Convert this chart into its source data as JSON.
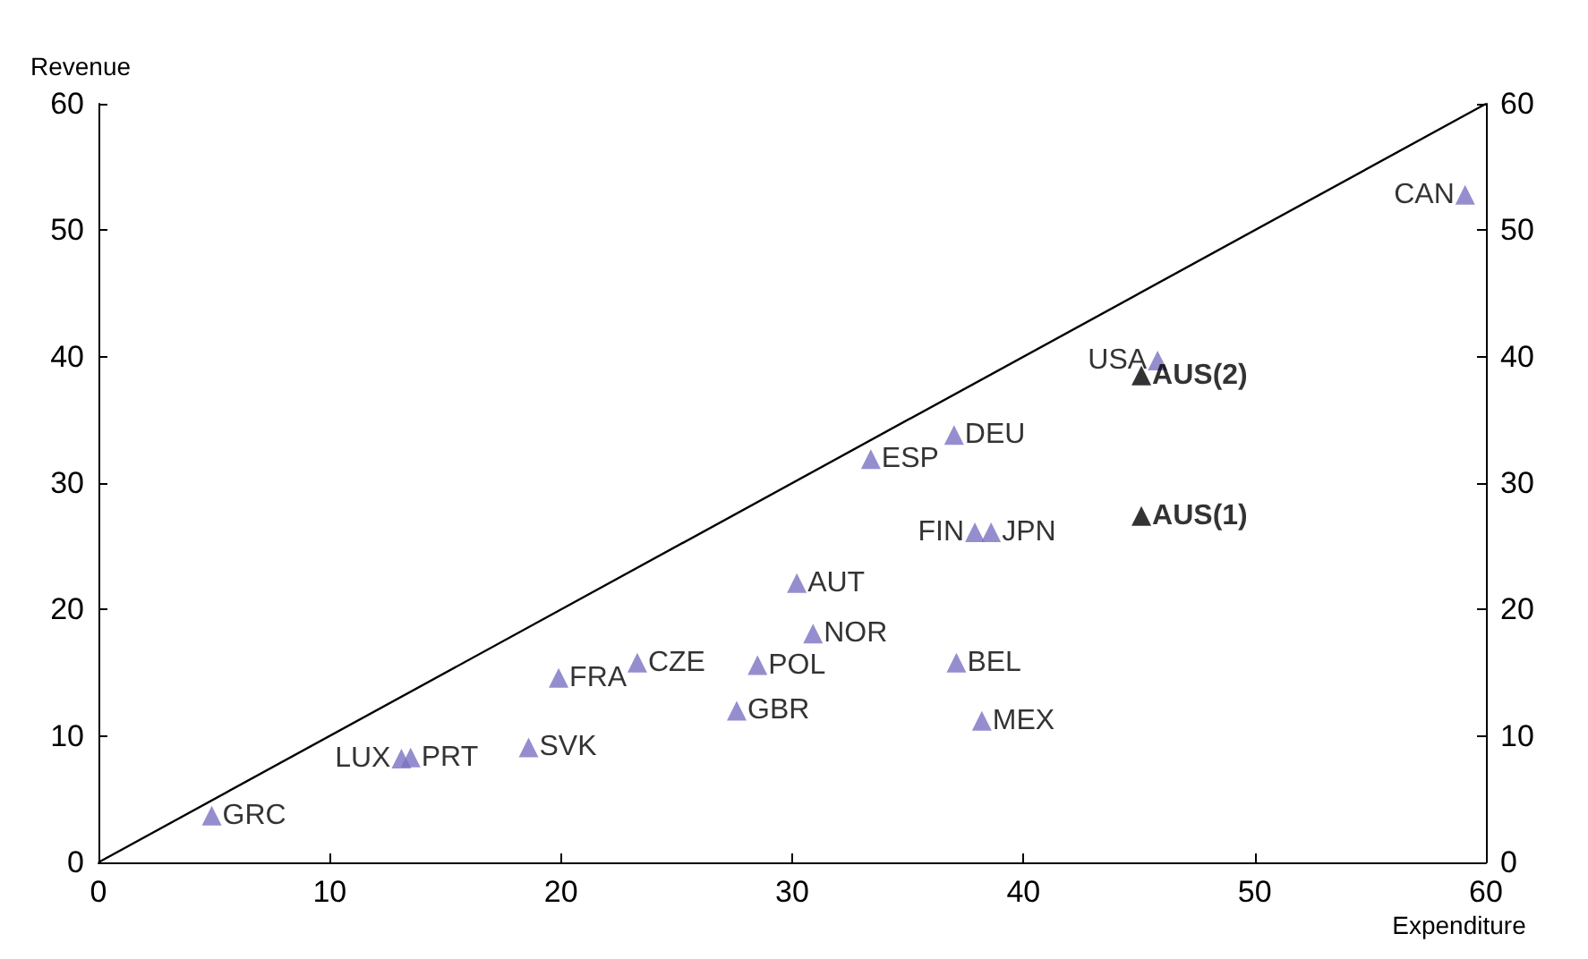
{
  "chart_data": {
    "type": "scatter",
    "xlabel": "Expenditure",
    "ylabel": "Revenue",
    "marker": "triangle",
    "grid": false,
    "xlim": [
      0,
      60
    ],
    "xticks": [
      0,
      10,
      20,
      30,
      40,
      50,
      60
    ],
    "ylim": [
      0,
      60
    ],
    "yticks": [
      0,
      10,
      20,
      30,
      40,
      50,
      60
    ],
    "y2lim": [
      0,
      60
    ],
    "y2ticks": [
      0,
      10,
      20,
      30,
      40,
      50,
      60
    ],
    "series": [
      {
        "type": "line",
        "color": "#000000",
        "marker": "none",
        "x": [
          0,
          60
        ],
        "values": [
          0,
          60
        ]
      },
      {
        "color": "#7b72c2",
        "x": [
          4.9,
          13.1,
          13.5,
          18.6,
          19.9,
          23.3,
          27.6,
          28.5,
          30.2,
          30.9,
          33.4,
          37.0,
          37.1,
          37.9,
          38.6,
          38.2,
          45.8,
          59.1
        ],
        "values": [
          3.7,
          8.2,
          8.3,
          9.1,
          14.6,
          15.8,
          12.0,
          15.6,
          22.1,
          18.1,
          31.9,
          33.8,
          15.8,
          26.1,
          26.1,
          11.2,
          39.7,
          52.8
        ]
      },
      {
        "color": "#000000",
        "x": [
          45.1,
          45.1
        ],
        "values": [
          38.5,
          27.4
        ]
      }
    ],
    "annotations": [
      {
        "text": "GRC",
        "x": 4.9,
        "y": 3.7
      },
      {
        "text": "LUX",
        "x": 13.1,
        "y": 8.2
      },
      {
        "text": "PRT",
        "x": 13.5,
        "y": 8.3
      },
      {
        "text": "SVK",
        "x": 18.6,
        "y": 9.1
      },
      {
        "text": "FRA",
        "x": 19.9,
        "y": 14.6
      },
      {
        "text": "CZE",
        "x": 23.3,
        "y": 15.8
      },
      {
        "text": "GBR",
        "x": 27.6,
        "y": 12.0
      },
      {
        "text": "POL",
        "x": 28.5,
        "y": 15.6
      },
      {
        "text": "AUT",
        "x": 30.2,
        "y": 22.1
      },
      {
        "text": "NOR",
        "x": 30.9,
        "y": 18.1
      },
      {
        "text": "ESP",
        "x": 33.4,
        "y": 31.9
      },
      {
        "text": "DEU",
        "x": 37.0,
        "y": 33.8
      },
      {
        "text": "BEL",
        "x": 37.1,
        "y": 15.8
      },
      {
        "text": "FIN",
        "x": 37.9,
        "y": 26.1
      },
      {
        "text": "JPN",
        "x": 38.6,
        "y": 26.1
      },
      {
        "text": "MEX",
        "x": 38.2,
        "y": 11.2
      },
      {
        "text": "USA",
        "x": 45.8,
        "y": 39.7
      },
      {
        "text": "CAN",
        "x": 59.1,
        "y": 52.8
      },
      {
        "text": "AUS(2)",
        "x": 45.1,
        "y": 38.5
      },
      {
        "text": "AUS(1)",
        "x": 45.1,
        "y": 27.4
      }
    ]
  }
}
